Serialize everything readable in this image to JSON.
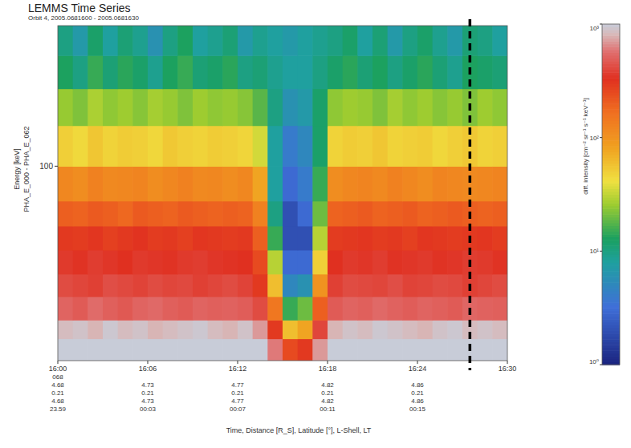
{
  "chart_data": {
    "type": "heatmap",
    "title": "LEMMS Time Series",
    "subtitle": "Orbit 4, 2005.0681600 - 2005.0681630",
    "x_label": "Time, Distance [R_S], Latitude [°], L-Shell, LT",
    "y_label": "Energy [keV]",
    "y_label2": "PHA_E_000 - PHA_E_062",
    "log": "y",
    "xlim": [
      0,
      30
    ],
    "xticks": [
      {
        "value": 0,
        "label": "16:00"
      },
      {
        "value": 6,
        "label": "16:06"
      },
      {
        "value": 12,
        "label": "16:12"
      },
      {
        "value": 18,
        "label": "16:18"
      },
      {
        "value": 24,
        "label": "16:24"
      },
      {
        "value": 30,
        "label": "16:30"
      }
    ],
    "x_info": [
      {
        "value": 0,
        "lines": [
          "068",
          "4.68",
          "0.21",
          "4.68",
          "23.59"
        ]
      },
      {
        "value": 6,
        "lines": [
          "4.73",
          "0.21",
          "4.73",
          "00:03"
        ]
      },
      {
        "value": 12,
        "lines": [
          "4.77",
          "0.21",
          "4.77",
          "00:07"
        ]
      },
      {
        "value": 18,
        "lines": [
          "4.82",
          "0.21",
          "4.82",
          "00:11"
        ]
      },
      {
        "value": 24,
        "lines": [
          "4.86",
          "0.21",
          "4.86",
          "00:15"
        ]
      }
    ],
    "ylim": [
      20,
      320
    ],
    "yticks": [
      100
    ],
    "x_bins": [
      0,
      1,
      2,
      3,
      4,
      5,
      6,
      7,
      8,
      9,
      10,
      11,
      12,
      13,
      14,
      15,
      16,
      17,
      18,
      19,
      20,
      21,
      22,
      23,
      24,
      25,
      26,
      27,
      28,
      29,
      30
    ],
    "y_bins": [
      20,
      24,
      28,
      34,
      41,
      50,
      61,
      75,
      100,
      140,
      190,
      250,
      320
    ],
    "cells": [
      [
        1100,
        1200,
        1150,
        1200,
        1100,
        1250,
        1200,
        1150,
        1100,
        1200,
        1250,
        1200,
        1150,
        1100,
        600,
        250,
        300,
        700,
        1100,
        1200,
        1150,
        1200,
        1250,
        1100,
        1200,
        1150,
        1200,
        1100,
        1150,
        1200
      ],
      [
        850,
        900,
        800,
        950,
        850,
        900,
        800,
        850,
        900,
        950,
        850,
        800,
        900,
        700,
        300,
        60,
        80,
        400,
        800,
        900,
        850,
        950,
        900,
        850,
        800,
        900,
        950,
        850,
        900,
        850
      ],
      [
        520,
        480,
        550,
        500,
        470,
        520,
        540,
        500,
        480,
        520,
        500,
        510,
        490,
        420,
        150,
        15,
        20,
        200,
        480,
        520,
        500,
        540,
        510,
        490,
        520,
        500,
        480,
        530,
        510,
        500
      ],
      [
        420,
        400,
        380,
        430,
        410,
        390,
        420,
        400,
        410,
        380,
        400,
        420,
        390,
        300,
        60,
        5,
        6,
        100,
        380,
        420,
        410,
        400,
        430,
        390,
        400,
        420,
        410,
        380,
        400,
        420
      ],
      [
        360,
        340,
        370,
        350,
        330,
        360,
        350,
        340,
        360,
        370,
        350,
        340,
        330,
        250,
        30,
        3,
        3,
        50,
        330,
        360,
        350,
        370,
        340,
        350,
        360,
        340,
        350,
        370,
        360,
        340
      ],
      [
        300,
        290,
        310,
        280,
        300,
        320,
        290,
        300,
        280,
        310,
        300,
        290,
        300,
        200,
        15,
        2,
        2,
        30,
        290,
        300,
        310,
        290,
        300,
        280,
        310,
        300,
        290,
        300,
        310,
        290
      ],
      [
        200,
        190,
        210,
        200,
        180,
        210,
        200,
        190,
        210,
        200,
        190,
        200,
        190,
        130,
        10,
        2,
        3,
        20,
        190,
        200,
        210,
        190,
        200,
        210,
        190,
        200,
        210,
        200,
        190,
        200
      ],
      [
        120,
        110,
        130,
        115,
        120,
        125,
        110,
        120,
        130,
        115,
        120,
        110,
        120,
        80,
        8,
        3,
        4,
        15,
        110,
        120,
        125,
        115,
        130,
        120,
        110,
        125,
        120,
        115,
        120,
        125
      ],
      [
        50,
        45,
        55,
        48,
        52,
        50,
        46,
        54,
        50,
        48,
        52,
        50,
        47,
        35,
        8,
        4,
        5,
        12,
        48,
        52,
        50,
        55,
        48,
        50,
        52,
        46,
        50,
        54,
        48,
        50
      ],
      [
        25,
        22,
        28,
        24,
        26,
        23,
        27,
        25,
        22,
        26,
        24,
        25,
        23,
        18,
        10,
        6,
        7,
        12,
        24,
        26,
        25,
        22,
        27,
        24,
        26,
        23,
        25,
        22,
        26,
        24
      ],
      [
        13,
        10,
        15,
        11,
        14,
        12,
        9,
        13,
        15,
        11,
        12,
        14,
        10,
        11,
        9,
        8,
        8,
        10,
        12,
        14,
        11,
        13,
        10,
        12,
        14,
        11,
        9,
        13,
        12,
        11
      ],
      [
        10,
        7,
        12,
        8,
        11,
        9,
        6,
        10,
        13,
        8,
        9,
        11,
        7,
        9,
        8,
        7,
        8,
        9,
        10,
        12,
        8,
        11,
        7,
        10,
        12,
        9,
        7,
        11,
        10,
        8
      ]
    ],
    "colorbar": {
      "label": "diff. intensity [cm⁻² sr⁻¹ s⁻¹ keV⁻¹]",
      "range": [
        1,
        1000
      ],
      "log": true,
      "ticks": [
        {
          "value": 1,
          "label": "10⁰"
        },
        {
          "value": 10,
          "label": "10¹"
        },
        {
          "value": 100,
          "label": "10²"
        },
        {
          "value": 1000,
          "label": "10³"
        }
      ]
    },
    "annotations": [
      {
        "x": 27.5,
        "line_style": "dashed",
        "color": "#000000"
      }
    ]
  }
}
